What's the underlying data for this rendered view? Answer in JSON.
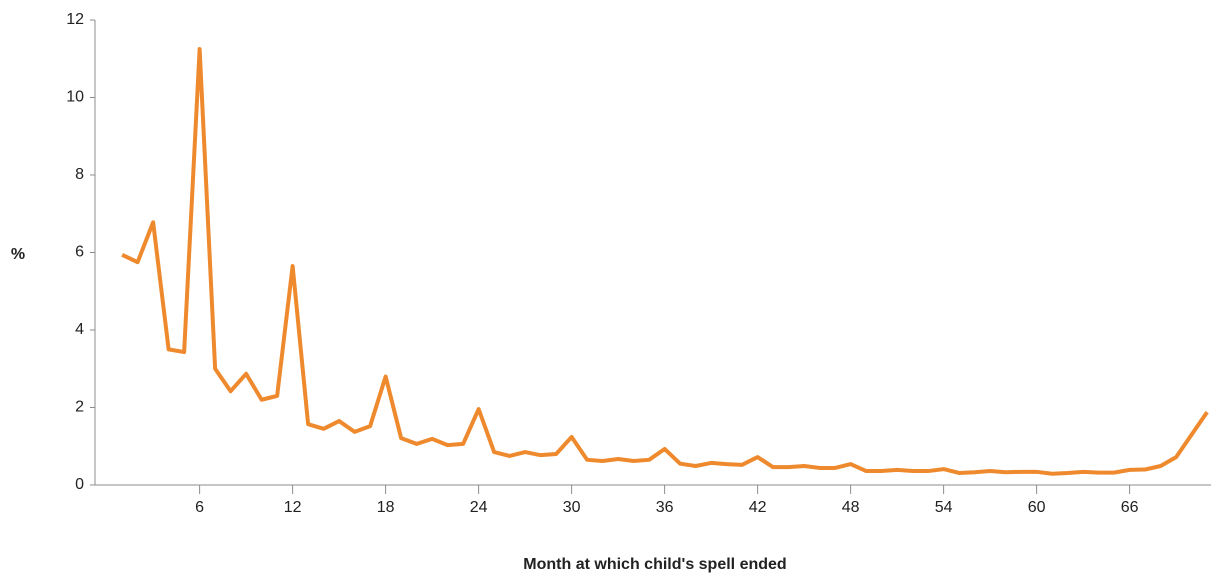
{
  "chart_data": {
    "type": "line",
    "x_label": "Month at which child's spell ended",
    "y_label": "%",
    "x": [
      1,
      2,
      3,
      4,
      5,
      6,
      7,
      8,
      9,
      10,
      11,
      12,
      13,
      14,
      15,
      16,
      17,
      18,
      19,
      20,
      21,
      22,
      23,
      24,
      25,
      26,
      27,
      28,
      29,
      30,
      31,
      32,
      33,
      34,
      35,
      36,
      37,
      38,
      39,
      40,
      41,
      42,
      43,
      44,
      45,
      46,
      47,
      48,
      49,
      50,
      51,
      52,
      53,
      54,
      55,
      56,
      57,
      58,
      59,
      60,
      61,
      62,
      63,
      64,
      65,
      66,
      67,
      68,
      69,
      70,
      71
    ],
    "series": [
      {
        "color": "#ee8a2d",
        "values": [
          5.94,
          5.75,
          6.78,
          3.5,
          3.43,
          11.25,
          3.0,
          2.42,
          2.87,
          2.2,
          2.3,
          5.65,
          1.57,
          1.45,
          1.65,
          1.37,
          1.52,
          2.8,
          1.21,
          1.06,
          1.19,
          1.03,
          1.06,
          1.96,
          0.85,
          0.75,
          0.85,
          0.77,
          0.8,
          1.24,
          0.65,
          0.62,
          0.67,
          0.62,
          0.65,
          0.93,
          0.55,
          0.49,
          0.57,
          0.54,
          0.52,
          0.72,
          0.46,
          0.46,
          0.49,
          0.44,
          0.44,
          0.54,
          0.36,
          0.36,
          0.39,
          0.36,
          0.36,
          0.41,
          0.31,
          0.33,
          0.36,
          0.33,
          0.34,
          0.34,
          0.29,
          0.31,
          0.34,
          0.32,
          0.32,
          0.39,
          0.4,
          0.49,
          0.72,
          1.3,
          1.88
        ]
      }
    ],
    "xlim": [
      -0.75,
      71.25
    ],
    "xticks": [
      6,
      12,
      18,
      24,
      30,
      36,
      42,
      48,
      54,
      60,
      66
    ],
    "ylim": [
      0,
      12
    ],
    "yticks": [
      0,
      2,
      4,
      6,
      8,
      10,
      12
    ],
    "grid": false
  }
}
